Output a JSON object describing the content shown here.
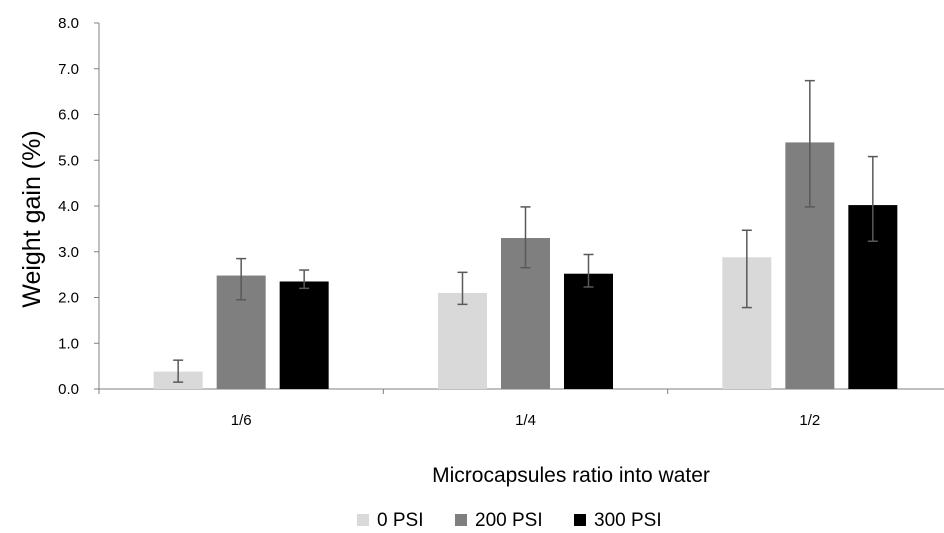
{
  "chart_data": {
    "type": "bar",
    "title": "",
    "xlabel": "Microcapsules ratio into water",
    "ylabel": "Weight gain (%)",
    "categories": [
      "1/6",
      "1/4",
      "1/2"
    ],
    "ylim": [
      0,
      8
    ],
    "yticks": [
      "0.0",
      "1.0",
      "2.0",
      "3.0",
      "4.0",
      "5.0",
      "6.0",
      "7.0",
      "8.0"
    ],
    "grid": false,
    "legend_position": "bottom",
    "series": [
      {
        "name": "0 PSI",
        "color": "#d9d9d9",
        "values": [
          0.38,
          2.1,
          2.88
        ],
        "error_low": [
          0.15,
          1.85,
          1.78
        ],
        "error_high": [
          0.63,
          2.55,
          3.47
        ]
      },
      {
        "name": "200 PSI",
        "color": "#7f7f7f",
        "values": [
          2.48,
          3.3,
          5.39
        ],
        "error_low": [
          1.95,
          2.65,
          3.98
        ],
        "error_high": [
          2.85,
          3.98,
          6.74
        ]
      },
      {
        "name": "300 PSI",
        "color": "#000000",
        "values": [
          2.35,
          2.52,
          4.02
        ],
        "error_low": [
          2.2,
          2.23,
          3.23
        ],
        "error_high": [
          2.6,
          2.94,
          5.08
        ]
      }
    ]
  }
}
